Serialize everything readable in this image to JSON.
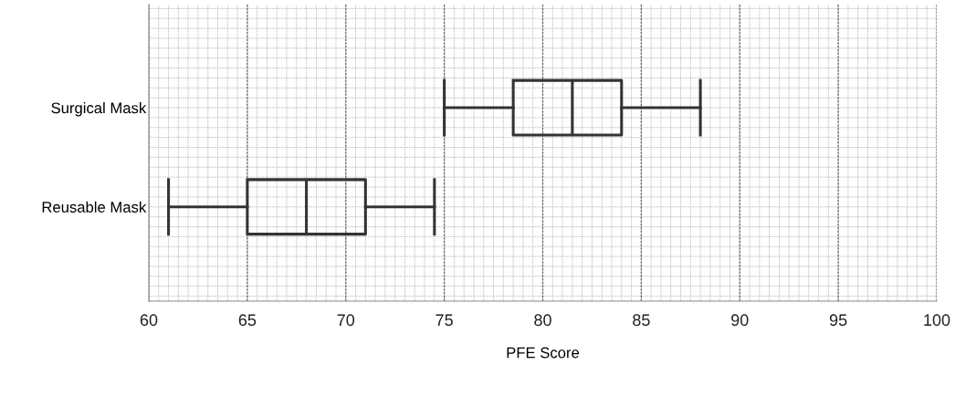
{
  "chart_data": {
    "type": "box",
    "orientation": "horizontal",
    "xlabel": "PFE Score",
    "categories": [
      "Surgical Mask",
      "Reusable Mask"
    ],
    "boxes": [
      {
        "low": 75,
        "q1": 78.5,
        "median": 81.5,
        "q3": 84,
        "high": 88
      },
      {
        "low": 61,
        "q1": 65,
        "median": 68,
        "q3": 71,
        "high": 74.5
      }
    ],
    "color": "#333333",
    "xlim": [
      60,
      100
    ],
    "xticks": [
      60,
      65,
      70,
      75,
      80,
      85,
      90,
      95,
      100
    ],
    "grid": true
  }
}
